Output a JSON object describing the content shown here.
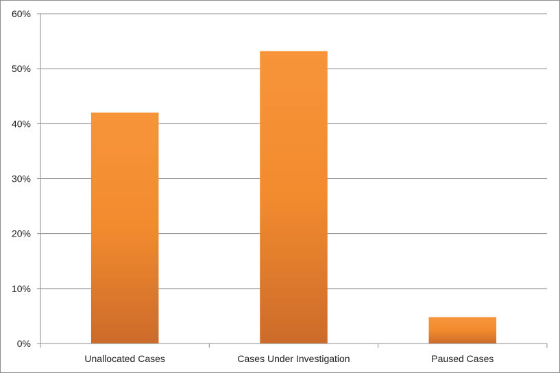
{
  "chart_data": {
    "type": "bar",
    "title": "",
    "xlabel": "",
    "ylabel": "",
    "categories": [
      "Unallocated Cases",
      "Cases Under Investigation",
      "Paused Cases"
    ],
    "values": [
      42,
      53.2,
      4.8
    ],
    "value_unit": "%",
    "ylim": [
      0,
      60
    ],
    "yticks": [
      0,
      10,
      20,
      30,
      40,
      50,
      60
    ],
    "ytick_labels": [
      "0%",
      "10%",
      "20%",
      "30%",
      "40%",
      "50%",
      "60%"
    ],
    "grid": true,
    "legend": "none",
    "colors": {
      "bar_top": "#f7943a",
      "bar_mid": "#f28b2e",
      "bar_bottom": "#cc6b2a",
      "gridline": "#8c8c8c",
      "axis": "#8c8c8c"
    }
  }
}
